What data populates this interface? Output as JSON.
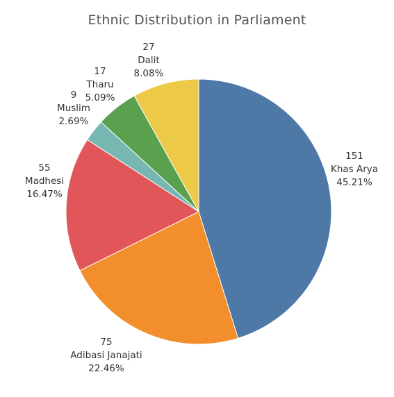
{
  "chart_data": {
    "type": "pie",
    "title": "Ethnic Distribution in Parliament",
    "slices": [
      {
        "name": "Khas Arya",
        "value": 151,
        "percent": "45.21%",
        "color": "#4e79a7"
      },
      {
        "name": "Adibasi Janajati",
        "value": 75,
        "percent": "22.46%",
        "color": "#f28e2b"
      },
      {
        "name": "Madhesi",
        "value": 55,
        "percent": "16.47%",
        "color": "#e15759"
      },
      {
        "name": "Muslim",
        "value": 9,
        "percent": "2.69%",
        "color": "#76b7b2"
      },
      {
        "name": "Tharu",
        "value": 17,
        "percent": "5.09%",
        "color": "#59a14f"
      },
      {
        "name": "Dalit",
        "value": 27,
        "percent": "8.08%",
        "color": "#edc948"
      }
    ],
    "start_angle": "12 o'clock",
    "direction": "clockwise",
    "legend": "none"
  }
}
